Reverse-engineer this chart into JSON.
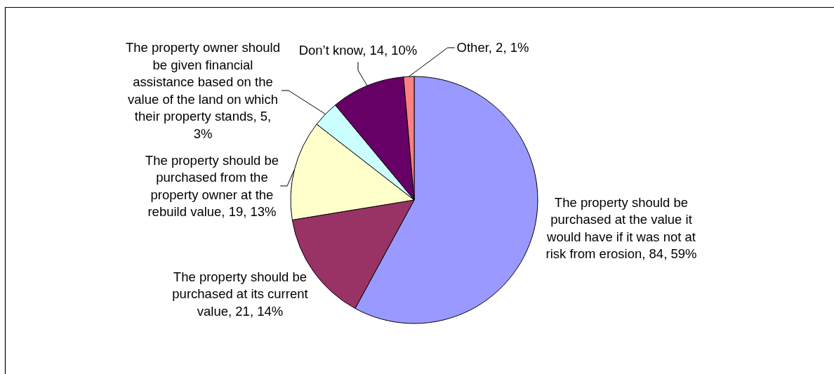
{
  "chart_data": {
    "type": "pie",
    "categories": [
      "The property should be purchased at the value it would have if it was not at risk from erosion",
      "The property should be purchased at its current value",
      "The property should be purchased from the property owner at the rebuild value",
      "The property owner should be given financial assistance based on the value of the land on which their property stands",
      "Don’t know",
      "Other"
    ],
    "values": [
      84,
      21,
      19,
      5,
      14,
      2
    ],
    "colors": [
      "#9999ff",
      "#993366",
      "#ffffcc",
      "#ccffff",
      "#660066",
      "#ff8080"
    ],
    "value_labels": [
      "84, 59%",
      "21, 14%",
      "19, 13%",
      "5, 3%",
      "14, 10%",
      "2, 1%"
    ]
  }
}
